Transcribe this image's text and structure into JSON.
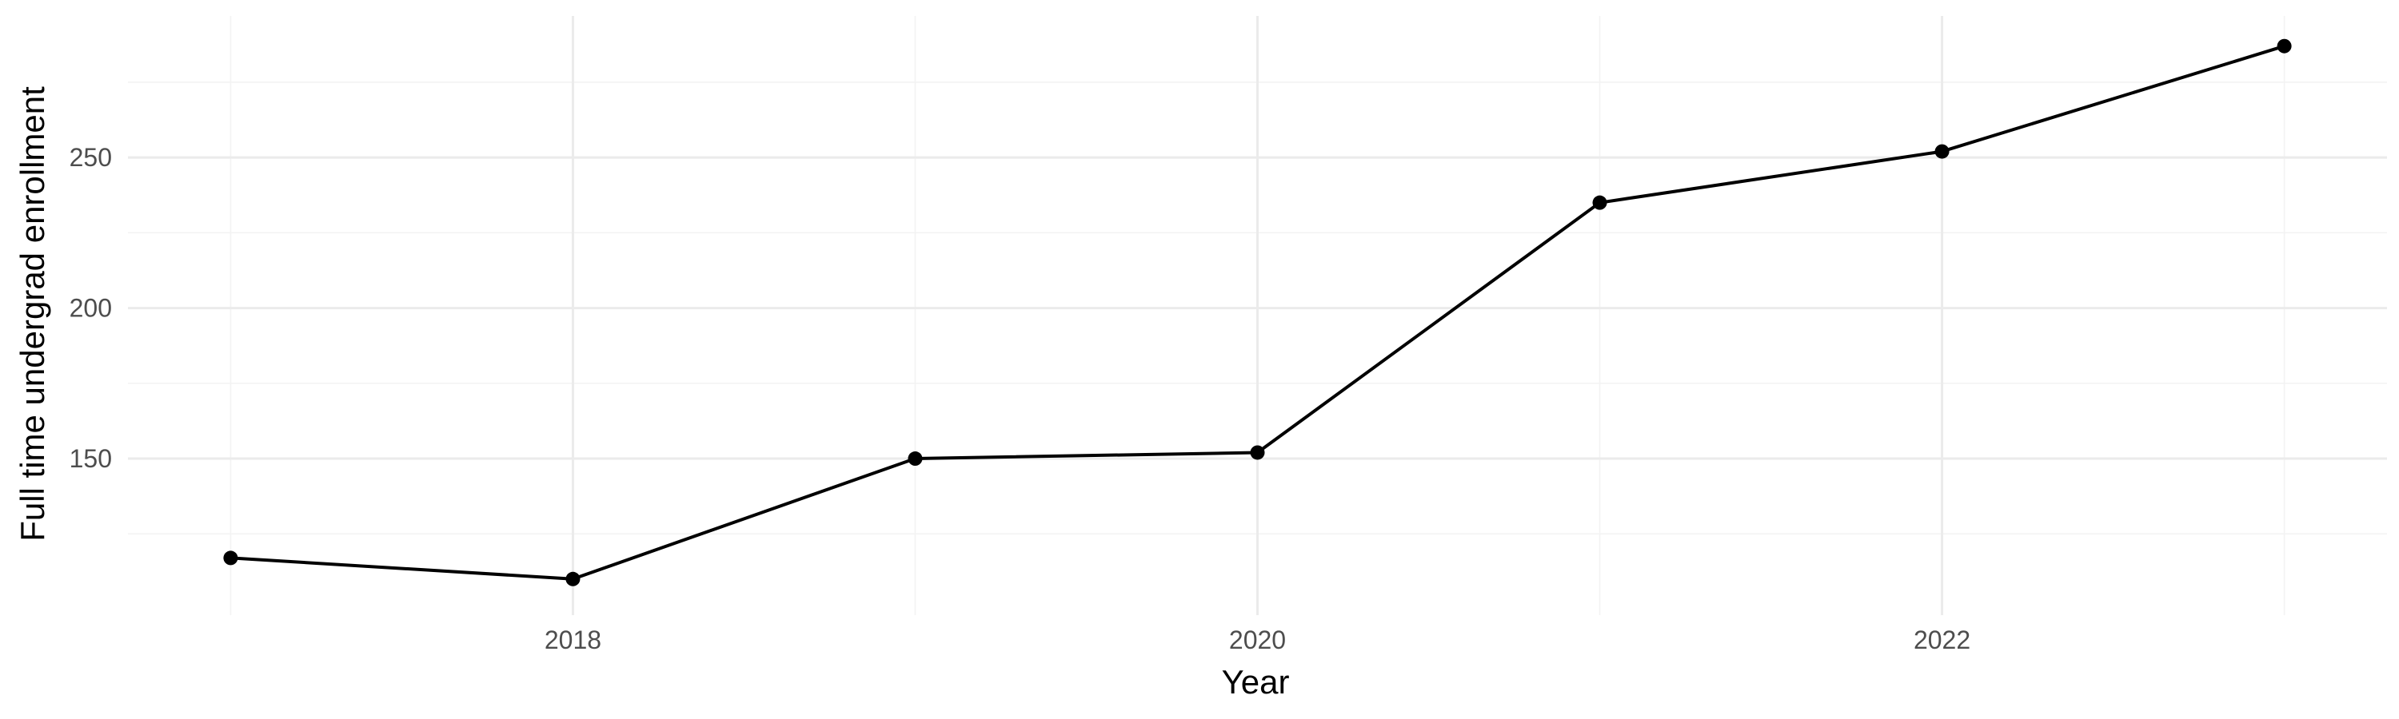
{
  "chart_data": {
    "type": "line",
    "title": "",
    "xlabel": "Year",
    "ylabel": "Full time undergrad enrollment",
    "x": [
      2017,
      2018,
      2019,
      2020,
      2021,
      2022,
      2023
    ],
    "series": [
      {
        "values": [
          117,
          110,
          150,
          152,
          235,
          252,
          287
        ]
      }
    ],
    "xlim": [
      2016.7,
      2023.3
    ],
    "ylim": [
      98,
      297
    ],
    "x_ticks": [
      2018,
      2020,
      2022
    ],
    "x_tick_labels": [
      "2018",
      "2020",
      "2022"
    ],
    "y_ticks": [
      150,
      200,
      250
    ],
    "y_tick_labels": [
      "150",
      "200",
      "250"
    ],
    "x_minor_ticks": [
      2017,
      2019,
      2021,
      2023
    ],
    "y_minor_ticks": [
      125,
      175,
      225,
      275
    ],
    "grid": true,
    "legend": "none",
    "line_color": "#000000",
    "grid_color": "#ebebeb"
  }
}
